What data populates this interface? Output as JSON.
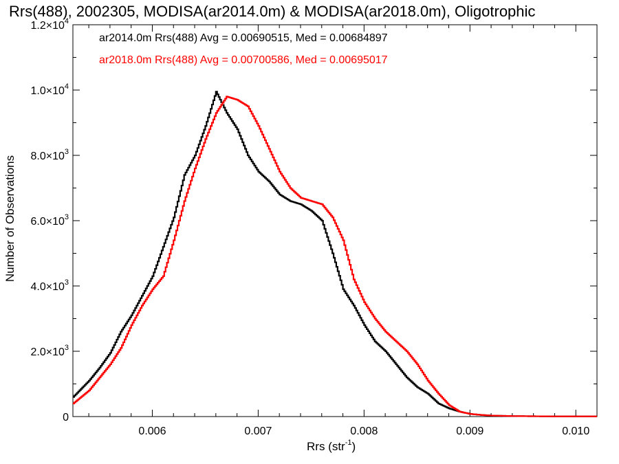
{
  "chart_data": {
    "type": "line",
    "title": "Rrs(488), 2002305, MODISA(ar2014.0m) & MODISA(ar2018.0m), Oligotrophic",
    "xlabel": "Rrs (str",
    "xlabel_exp": "-1",
    "xlabel_close": ")",
    "ylabel": "Number of Observations",
    "xlim": [
      0.00525,
      0.0102
    ],
    "ylim": [
      0,
      12000
    ],
    "x_ticks": [
      {
        "value": 0.006,
        "label": "0.006"
      },
      {
        "value": 0.007,
        "label": "0.007"
      },
      {
        "value": 0.008,
        "label": "0.008"
      },
      {
        "value": 0.009,
        "label": "0.009"
      },
      {
        "value": 0.01,
        "label": "0.010"
      }
    ],
    "y_ticks": [
      {
        "value": 0,
        "mant": "0",
        "exp": ""
      },
      {
        "value": 2000,
        "mant": "2.0×10",
        "exp": "3"
      },
      {
        "value": 4000,
        "mant": "4.0×10",
        "exp": "3"
      },
      {
        "value": 6000,
        "mant": "6.0×10",
        "exp": "3"
      },
      {
        "value": 8000,
        "mant": "8.0×10",
        "exp": "3"
      },
      {
        "value": 10000,
        "mant": "1.0×10",
        "exp": "4"
      },
      {
        "value": 12000,
        "mant": "1.2×10",
        "exp": "4"
      }
    ],
    "grid": false,
    "legend_position": "top-left",
    "series": [
      {
        "legend": "ar2014.0m Rrs(488) Avg = 0.00690515, Med = 0.00684897",
        "color": "#000000",
        "x": [
          0.00525,
          0.0054,
          0.0055,
          0.0056,
          0.0057,
          0.0058,
          0.0059,
          0.006,
          0.0061,
          0.0062,
          0.0063,
          0.0064,
          0.0065,
          0.0066,
          0.0067,
          0.0068,
          0.0069,
          0.007,
          0.0071,
          0.0072,
          0.0073,
          0.0074,
          0.0075,
          0.0076,
          0.0077,
          0.0078,
          0.0079,
          0.008,
          0.0081,
          0.0082,
          0.0083,
          0.0084,
          0.0085,
          0.0086,
          0.0087,
          0.0088,
          0.0089,
          0.009,
          0.0091,
          0.0092,
          0.0094,
          0.0096,
          0.0098,
          0.0102
        ],
        "y": [
          600,
          1100,
          1500,
          1950,
          2600,
          3100,
          3700,
          4300,
          5200,
          6100,
          7400,
          8000,
          8900,
          9950,
          9300,
          8800,
          8000,
          7500,
          7200,
          6800,
          6600,
          6500,
          6300,
          6000,
          5000,
          3900,
          3400,
          2800,
          2300,
          2000,
          1600,
          1200,
          900,
          700,
          400,
          250,
          150,
          80,
          50,
          30,
          15,
          10,
          5,
          5
        ]
      },
      {
        "legend": "ar2018.0m Rrs(488) Avg = 0.00700586, Med = 0.00695017",
        "color": "#ff0000",
        "x": [
          0.00525,
          0.0054,
          0.0055,
          0.0056,
          0.0057,
          0.0058,
          0.0059,
          0.006,
          0.0061,
          0.0062,
          0.0063,
          0.0064,
          0.0065,
          0.0066,
          0.0067,
          0.0068,
          0.0069,
          0.007,
          0.0071,
          0.0072,
          0.0073,
          0.0074,
          0.0075,
          0.0076,
          0.0077,
          0.0078,
          0.0079,
          0.008,
          0.0081,
          0.0082,
          0.0083,
          0.0084,
          0.0085,
          0.0086,
          0.0087,
          0.0088,
          0.0089,
          0.009,
          0.0091,
          0.0092,
          0.0094,
          0.0096,
          0.0098,
          0.0102
        ],
        "y": [
          400,
          800,
          1200,
          1600,
          2100,
          2800,
          3400,
          3900,
          4300,
          5400,
          6600,
          7600,
          8500,
          9300,
          9800,
          9700,
          9500,
          8900,
          8200,
          7500,
          7000,
          6700,
          6600,
          6500,
          6100,
          5400,
          4200,
          3500,
          3000,
          2600,
          2300,
          2000,
          1600,
          1100,
          700,
          350,
          150,
          80,
          50,
          30,
          15,
          10,
          5,
          5
        ]
      }
    ]
  }
}
